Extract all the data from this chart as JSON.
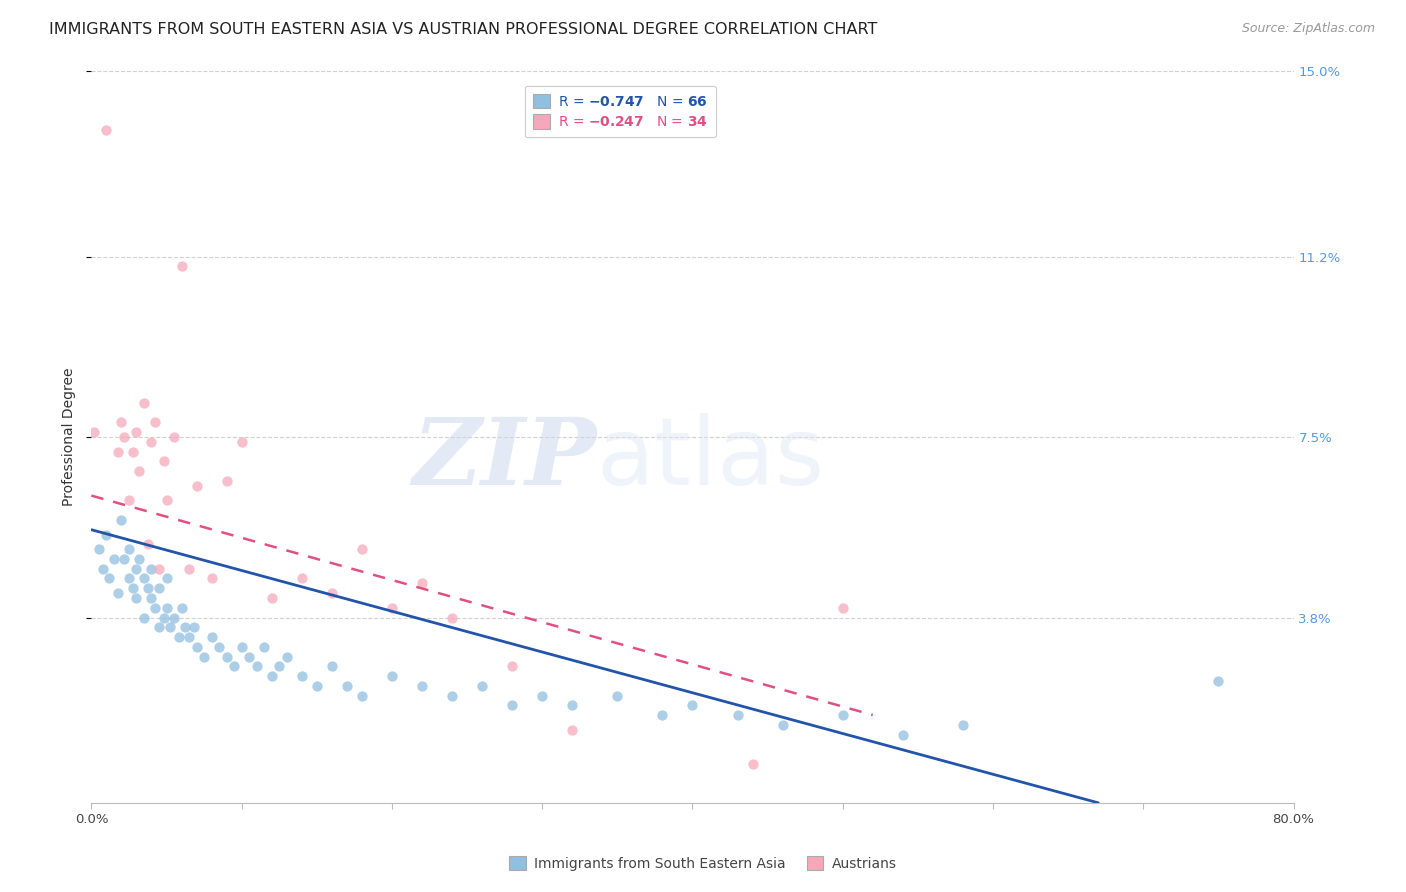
{
  "title": "IMMIGRANTS FROM SOUTH EASTERN ASIA VS AUSTRIAN PROFESSIONAL DEGREE CORRELATION CHART",
  "source": "Source: ZipAtlas.com",
  "ylabel": "Professional Degree",
  "x_min": 0.0,
  "x_max": 0.8,
  "y_min": 0.0,
  "y_max": 0.15,
  "y_tick_labels_right": [
    "15.0%",
    "11.2%",
    "7.5%",
    "3.8%"
  ],
  "y_tick_positions_right": [
    0.15,
    0.112,
    0.075,
    0.038
  ],
  "watermark_zip": "ZIP",
  "watermark_atlas": "atlas",
  "blue_scatter_x": [
    0.005,
    0.008,
    0.01,
    0.012,
    0.015,
    0.018,
    0.02,
    0.022,
    0.025,
    0.025,
    0.028,
    0.03,
    0.03,
    0.032,
    0.035,
    0.035,
    0.038,
    0.04,
    0.04,
    0.042,
    0.045,
    0.045,
    0.048,
    0.05,
    0.05,
    0.052,
    0.055,
    0.058,
    0.06,
    0.062,
    0.065,
    0.068,
    0.07,
    0.075,
    0.08,
    0.085,
    0.09,
    0.095,
    0.1,
    0.105,
    0.11,
    0.115,
    0.12,
    0.125,
    0.13,
    0.14,
    0.15,
    0.16,
    0.17,
    0.18,
    0.2,
    0.22,
    0.24,
    0.26,
    0.28,
    0.3,
    0.32,
    0.35,
    0.38,
    0.4,
    0.43,
    0.46,
    0.5,
    0.54,
    0.58,
    0.75
  ],
  "blue_scatter_y": [
    0.052,
    0.048,
    0.055,
    0.046,
    0.05,
    0.043,
    0.058,
    0.05,
    0.046,
    0.052,
    0.044,
    0.048,
    0.042,
    0.05,
    0.046,
    0.038,
    0.044,
    0.042,
    0.048,
    0.04,
    0.044,
    0.036,
    0.038,
    0.04,
    0.046,
    0.036,
    0.038,
    0.034,
    0.04,
    0.036,
    0.034,
    0.036,
    0.032,
    0.03,
    0.034,
    0.032,
    0.03,
    0.028,
    0.032,
    0.03,
    0.028,
    0.032,
    0.026,
    0.028,
    0.03,
    0.026,
    0.024,
    0.028,
    0.024,
    0.022,
    0.026,
    0.024,
    0.022,
    0.024,
    0.02,
    0.022,
    0.02,
    0.022,
    0.018,
    0.02,
    0.018,
    0.016,
    0.018,
    0.014,
    0.016,
    0.025
  ],
  "pink_scatter_x": [
    0.002,
    0.01,
    0.018,
    0.02,
    0.022,
    0.025,
    0.028,
    0.03,
    0.032,
    0.035,
    0.038,
    0.04,
    0.042,
    0.045,
    0.048,
    0.05,
    0.055,
    0.06,
    0.065,
    0.07,
    0.08,
    0.09,
    0.1,
    0.12,
    0.14,
    0.16,
    0.18,
    0.2,
    0.22,
    0.24,
    0.28,
    0.32,
    0.44,
    0.5
  ],
  "pink_scatter_y": [
    0.076,
    0.138,
    0.072,
    0.078,
    0.075,
    0.062,
    0.072,
    0.076,
    0.068,
    0.082,
    0.053,
    0.074,
    0.078,
    0.048,
    0.07,
    0.062,
    0.075,
    0.11,
    0.048,
    0.065,
    0.046,
    0.066,
    0.074,
    0.042,
    0.046,
    0.043,
    0.052,
    0.04,
    0.045,
    0.038,
    0.028,
    0.015,
    0.008,
    0.04
  ],
  "blue_line_x_start": 0.0,
  "blue_line_x_end": 0.67,
  "blue_line_y_start": 0.056,
  "blue_line_y_end": 0.0,
  "pink_line_x_start": 0.0,
  "pink_line_x_end": 0.52,
  "pink_line_y_start": 0.063,
  "pink_line_y_end": 0.018,
  "scatter_size": 55,
  "blue_color": "#90bfdf",
  "pink_color": "#f5a8ba",
  "blue_line_color": "#2255aa",
  "pink_line_color": "#e05080",
  "grid_color": "#cccccc",
  "background_color": "#ffffff",
  "title_fontsize": 11.5,
  "source_fontsize": 9,
  "axis_label_fontsize": 10,
  "tick_fontsize": 9.5,
  "legend_fontsize": 10,
  "right_tick_color": "#5599dd"
}
